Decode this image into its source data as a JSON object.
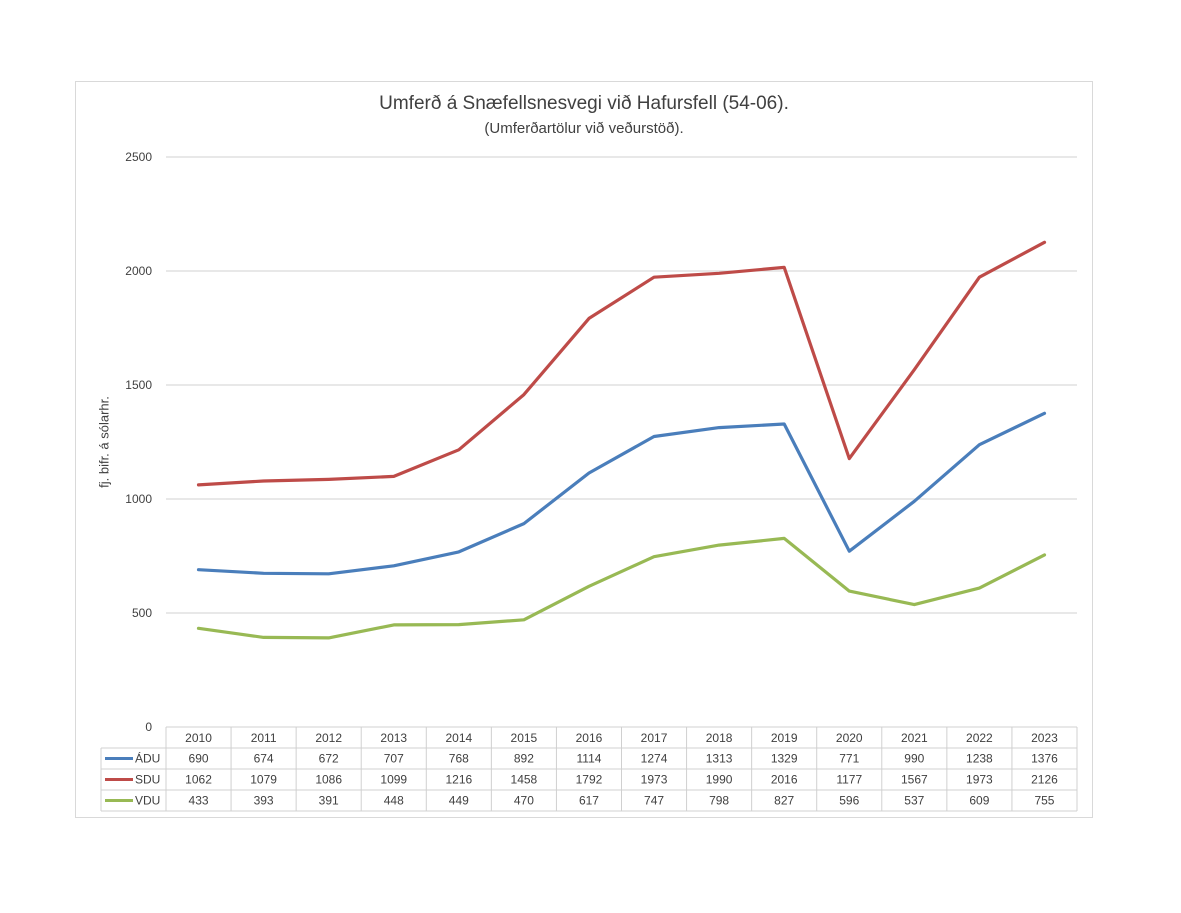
{
  "chart_data": {
    "type": "line",
    "title": "Umferð á Snæfellsnesvegi við Hafursfell (54-06).",
    "subtitle": "(Umferðartölur við veðurstöð).",
    "xlabel": "",
    "ylabel": "fj. bifr. á sólarhr.",
    "ylim": [
      0,
      2500
    ],
    "yticks": [
      0,
      500,
      1000,
      1500,
      2000,
      2500
    ],
    "grid": true,
    "legend": "data-table",
    "categories": [
      "2010",
      "2011",
      "2012",
      "2013",
      "2014",
      "2015",
      "2016",
      "2017",
      "2018",
      "2019",
      "2020",
      "2021",
      "2022",
      "2023"
    ],
    "series": [
      {
        "name": "ÁDU",
        "color": "#4a7ebb",
        "values": [
          690,
          674,
          672,
          707,
          768,
          892,
          1114,
          1274,
          1313,
          1329,
          771,
          990,
          1238,
          1376
        ]
      },
      {
        "name": "SDU",
        "color": "#be4b48",
        "values": [
          1062,
          1079,
          1086,
          1099,
          1216,
          1458,
          1792,
          1973,
          1990,
          2016,
          1177,
          1567,
          1973,
          2126
        ]
      },
      {
        "name": "VDU",
        "color": "#98b954",
        "values": [
          433,
          393,
          391,
          448,
          449,
          470,
          617,
          747,
          798,
          827,
          596,
          537,
          609,
          755
        ]
      }
    ]
  }
}
